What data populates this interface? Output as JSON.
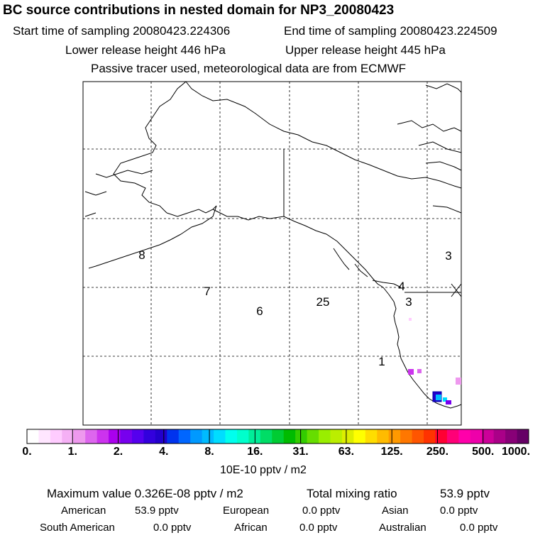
{
  "header": {
    "title": "BC  source contributions in nested domain for NP3_20080423",
    "start_time": "Start time of sampling 20080423.224306",
    "end_time": "End time of sampling 20080423.224509",
    "lower_height": "Lower release height  446 hPa",
    "upper_height": "Upper release height  445 hPa",
    "tracer_note": "Passive tracer used, meteorological data are from ECMWF"
  },
  "chart_data": {
    "type": "heatmap",
    "title": "BC  source contributions in nested domain for NP3_20080423",
    "colorbar": {
      "ticks": [
        "0.",
        "1.",
        "2.",
        "4.",
        "8.",
        "16.",
        "31.",
        "63.",
        "125.",
        "250.",
        "500.",
        "1000."
      ],
      "units": "10E-10 pptv / m2",
      "colors": [
        "#ffffff",
        "#ffe6ff",
        "#ffccff",
        "#f5b0f5",
        "#ee99ee",
        "#dd66ee",
        "#cc33ee",
        "#aa00ee",
        "#7700ee",
        "#5500ee",
        "#3300dd",
        "#2200cc",
        "#0033ee",
        "#0066ff",
        "#0099ff",
        "#00bbff",
        "#00ddff",
        "#00ffee",
        "#00ffcc",
        "#00ee99",
        "#00dd66",
        "#00cc33",
        "#00bb00",
        "#33cc00",
        "#66dd00",
        "#99ee00",
        "#bbee00",
        "#ddee00",
        "#ffff00",
        "#ffdd00",
        "#ffbb00",
        "#ff9900",
        "#ff7700",
        "#ff5500",
        "#ff3300",
        "#ff0033",
        "#ff0077",
        "#ff00aa",
        "#ee00aa",
        "#cc0099",
        "#aa0088",
        "#880077",
        "#660066"
      ]
    },
    "trajectory_labels": [
      "8",
      "7",
      "6",
      "25",
      "4",
      "3",
      "3",
      "1"
    ],
    "source_cells": [
      {
        "value": 1.5
      },
      {
        "value": 1.2
      },
      {
        "value": 4.0
      },
      {
        "value": 8.0
      },
      {
        "value": 10.0
      },
      {
        "value": 2.0
      },
      {
        "value": 1.0
      },
      {
        "value": 0.5
      }
    ]
  },
  "footer": {
    "max_value_label": "Maximum value  0.326E-08 pptv / m2",
    "total_label": "Total mixing ratio",
    "total_value": "53.9 pptv",
    "rows": [
      [
        {
          "label": "American",
          "value": "53.9 pptv"
        },
        {
          "label": "European",
          "value": "0.0 pptv"
        },
        {
          "label": "Asian",
          "value": "0.0 pptv"
        }
      ],
      [
        {
          "label": "South American",
          "value": "0.0 pptv"
        },
        {
          "label": "African",
          "value": "0.0 pptv"
        },
        {
          "label": "Australian",
          "value": "0.0 pptv"
        }
      ]
    ]
  }
}
